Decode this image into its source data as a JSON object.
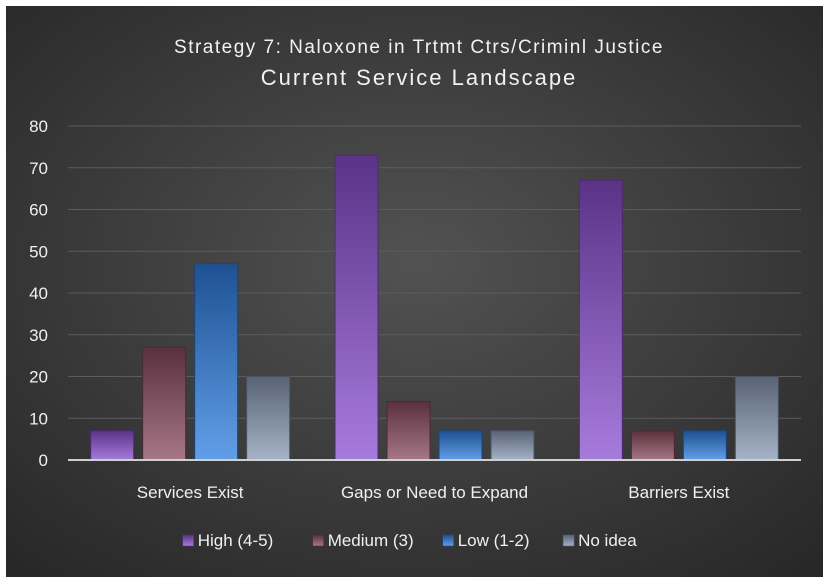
{
  "chart_data": {
    "type": "bar",
    "title": "Strategy 7: Naloxone in Trtmt Ctrs/Criminl Justice",
    "subtitle": "Current Service Landscape",
    "categories": [
      "Services Exist",
      "Gaps or Need to Expand",
      "Barriers Exist"
    ],
    "series": [
      {
        "name": "High (4-5)",
        "values": [
          7,
          73,
          67
        ],
        "color": "#8a4fd0"
      },
      {
        "name": "Medium (3)",
        "values": [
          27,
          14,
          7
        ],
        "color": "#8a4a5e"
      },
      {
        "name": "Low (1-2)",
        "values": [
          47,
          7,
          7
        ],
        "color": "#2d7de0"
      },
      {
        "name": "No idea",
        "values": [
          20,
          7,
          20
        ],
        "color": "#8898b4"
      }
    ],
    "ylim": [
      0,
      80
    ],
    "yticks": [
      "0",
      "10",
      "20",
      "30",
      "40",
      "50",
      "60",
      "70",
      "80"
    ],
    "grid": true,
    "legend_position": "bottom",
    "background": "#3a3a3a"
  }
}
